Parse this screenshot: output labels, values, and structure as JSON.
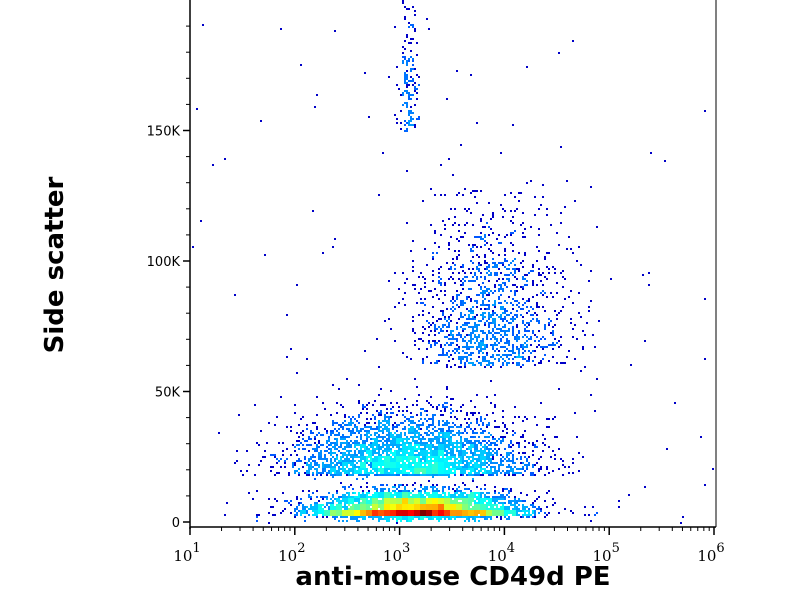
{
  "chart_data": {
    "type": "scatter",
    "title": "",
    "xlabel": "anti-mouse CD49d PE",
    "ylabel": "Side scatter",
    "xscale": "log",
    "xlim": [
      10,
      1000000
    ],
    "ylim": [
      0,
      197000
    ],
    "x_ticks": [
      {
        "value": 10,
        "base": "10",
        "exp": "1"
      },
      {
        "value": 100,
        "base": "10",
        "exp": "2"
      },
      {
        "value": 1000,
        "base": "10",
        "exp": "3"
      },
      {
        "value": 10000,
        "base": "10",
        "exp": "4"
      },
      {
        "value": 100000,
        "base": "10",
        "exp": "5"
      },
      {
        "value": 1000000,
        "base": "10",
        "exp": "6"
      }
    ],
    "y_ticks": [
      {
        "value": 0,
        "label": "0"
      },
      {
        "value": 50000,
        "label": "50K"
      },
      {
        "value": 100000,
        "label": "100K"
      },
      {
        "value": 150000,
        "label": "150K"
      }
    ],
    "coloring": "density (blue low → red high)",
    "populations": [
      {
        "name": "main dense cluster",
        "log10_x_center": 3.15,
        "log10_x_sd": 0.45,
        "y_center": 5000,
        "y_sd": 3500,
        "count": 7000
      },
      {
        "name": "broad low-SSC",
        "log10_x_center": 3.1,
        "log10_x_sd": 0.55,
        "y_center": 18000,
        "y_sd": 11000,
        "count": 3500
      },
      {
        "name": "high-SSC CD49d+",
        "log10_x_center": 3.85,
        "log10_x_sd": 0.35,
        "y_center": 60000,
        "y_sd": 28000,
        "count": 1400
      },
      {
        "name": "vertical streak",
        "log10_x_center": 3.08,
        "log10_x_sd": 0.05,
        "y_center": 150000,
        "y_sd": 30000,
        "count": 160
      },
      {
        "name": "background scatter",
        "log10_x_range": [
          1,
          6
        ],
        "y_range": [
          0,
          197000
        ],
        "count": 120
      }
    ]
  }
}
